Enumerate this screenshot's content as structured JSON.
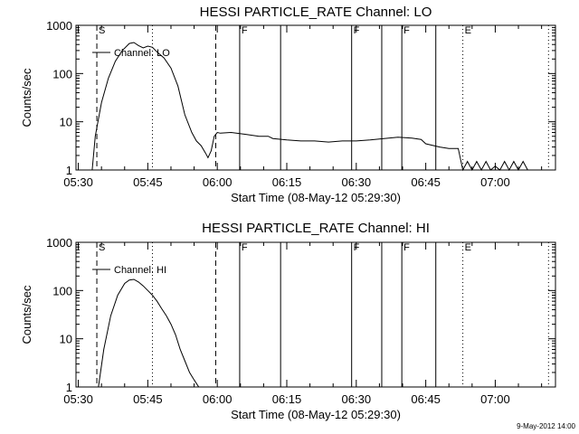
{
  "chart_data": [
    {
      "type": "line",
      "title": "HESSI PARTICLE_RATE Channel: LO",
      "xlabel": "Start Time (08-May-12 05:29:30)",
      "ylabel": "Counts/sec",
      "yscale": "log",
      "ylim": [
        1,
        1000
      ],
      "xlim": [
        "05:29:30",
        "07:13:00"
      ],
      "x_ticks": [
        "05:30",
        "05:45",
        "06:00",
        "06:15",
        "06:30",
        "06:45",
        "07:00"
      ],
      "y_ticks": [
        "1",
        "10",
        "100",
        "1000"
      ],
      "legend": {
        "placement": "top-left",
        "entries": [
          "Channel: LO"
        ]
      },
      "series": [
        {
          "name": "Channel: LO",
          "x": [
            "05:29:30",
            "05:33:00",
            "05:33:40",
            "05:35:00",
            "05:36:30",
            "05:38:00",
            "05:39:30",
            "05:41:00",
            "05:42:00",
            "05:43:00",
            "05:44:00",
            "05:45:00",
            "05:46:00",
            "05:47:00",
            "05:48:30",
            "05:50:00",
            "05:51:30",
            "05:53:00",
            "05:54:30",
            "05:55:30",
            "05:56:30",
            "05:57:30",
            "05:58:00",
            "05:58:40",
            "05:59:20",
            "06:00:00",
            "06:00:40",
            "06:03:00",
            "06:06:00",
            "06:09:00",
            "06:11:00",
            "06:12:00",
            "06:15:00",
            "06:18:00",
            "06:21:00",
            "06:24:00",
            "06:27:00",
            "06:30:00",
            "06:33:00",
            "06:36:00",
            "06:39:00",
            "06:42:00",
            "06:44:00",
            "06:45:00",
            "06:48:00",
            "06:50:00",
            "06:52:00",
            "06:53:00",
            "06:54:00",
            "06:55:00",
            "06:56:00",
            "06:57:00",
            "06:58:00",
            "06:59:00",
            "07:00:00",
            "07:01:00",
            "07:02:00",
            "07:03:00",
            "07:04:00",
            "07:05:00",
            "07:06:00",
            "07:07:00"
          ],
          "y": [
            1,
            1,
            5,
            25,
            80,
            180,
            300,
            420,
            440,
            380,
            340,
            370,
            350,
            280,
            210,
            130,
            55,
            14,
            6,
            4,
            3.2,
            2.2,
            1.8,
            2.5,
            5,
            6,
            5.8,
            6,
            5.5,
            5,
            5,
            4.5,
            4.2,
            4,
            4,
            3.8,
            4,
            4,
            4.2,
            4.5,
            4.8,
            4.6,
            4.3,
            3.5,
            3,
            2.8,
            2.8,
            1,
            1.5,
            1,
            1.5,
            1,
            1.5,
            1,
            1.2,
            1,
            1.5,
            1,
            1.5,
            1,
            1.5,
            1
          ]
        }
      ],
      "markers": [
        {
          "time": "05:34:00",
          "style": "dashed",
          "label": "S"
        },
        {
          "time": "05:46:00",
          "style": "dotted",
          "label": ""
        },
        {
          "time": "05:59:40",
          "style": "dashed",
          "label": ""
        },
        {
          "time": "06:04:50",
          "style": "solid",
          "label": "F"
        },
        {
          "time": "06:13:40",
          "style": "solid",
          "label": ""
        },
        {
          "time": "06:29:00",
          "style": "solid",
          "label": "F"
        },
        {
          "time": "06:35:30",
          "style": "solid",
          "label": ""
        },
        {
          "time": "06:39:50",
          "style": "solid",
          "label": "F"
        },
        {
          "time": "06:47:10",
          "style": "solid",
          "label": ""
        },
        {
          "time": "06:53:00",
          "style": "dotted",
          "label": "E"
        },
        {
          "time": "07:11:30",
          "style": "dotted",
          "label": ""
        }
      ]
    },
    {
      "type": "line",
      "title": "HESSI PARTICLE_RATE Channel: HI",
      "xlabel": "Start Time (08-May-12 05:29:30)",
      "ylabel": "Counts/sec",
      "yscale": "log",
      "ylim": [
        1,
        1000
      ],
      "xlim": [
        "05:29:30",
        "07:13:00"
      ],
      "x_ticks": [
        "05:30",
        "05:45",
        "06:00",
        "06:15",
        "06:30",
        "06:45",
        "07:00"
      ],
      "y_ticks": [
        "1",
        "10",
        "100",
        "1000"
      ],
      "legend": {
        "placement": "top-left",
        "entries": [
          "Channel: HI"
        ]
      },
      "series": [
        {
          "name": "Channel: HI",
          "x": [
            "05:34:20",
            "05:35:30",
            "05:37:00",
            "05:38:30",
            "05:40:00",
            "05:41:00",
            "05:42:00",
            "05:43:00",
            "05:44:00",
            "05:45:00",
            "05:46:00",
            "05:47:00",
            "05:48:00",
            "05:49:00",
            "05:50:00",
            "05:51:00",
            "05:52:00",
            "05:53:00",
            "05:54:00",
            "05:55:00",
            "05:56:00"
          ],
          "y": [
            1,
            6,
            30,
            80,
            140,
            165,
            170,
            150,
            125,
            100,
            80,
            60,
            42,
            30,
            20,
            12,
            6,
            3.5,
            2,
            1.4,
            1
          ]
        }
      ],
      "markers": [
        {
          "time": "05:34:00",
          "style": "dashed",
          "label": "S"
        },
        {
          "time": "05:46:00",
          "style": "dotted",
          "label": ""
        },
        {
          "time": "05:59:40",
          "style": "dashed",
          "label": ""
        },
        {
          "time": "06:04:50",
          "style": "solid",
          "label": "F"
        },
        {
          "time": "06:13:40",
          "style": "solid",
          "label": ""
        },
        {
          "time": "06:29:00",
          "style": "solid",
          "label": "F"
        },
        {
          "time": "06:35:30",
          "style": "solid",
          "label": ""
        },
        {
          "time": "06:39:50",
          "style": "solid",
          "label": "F"
        },
        {
          "time": "06:47:10",
          "style": "solid",
          "label": ""
        },
        {
          "time": "06:53:00",
          "style": "dotted",
          "label": "E"
        },
        {
          "time": "07:11:30",
          "style": "dotted",
          "label": ""
        }
      ]
    }
  ],
  "footer": {
    "timestamp": "9-May-2012 14:00"
  }
}
